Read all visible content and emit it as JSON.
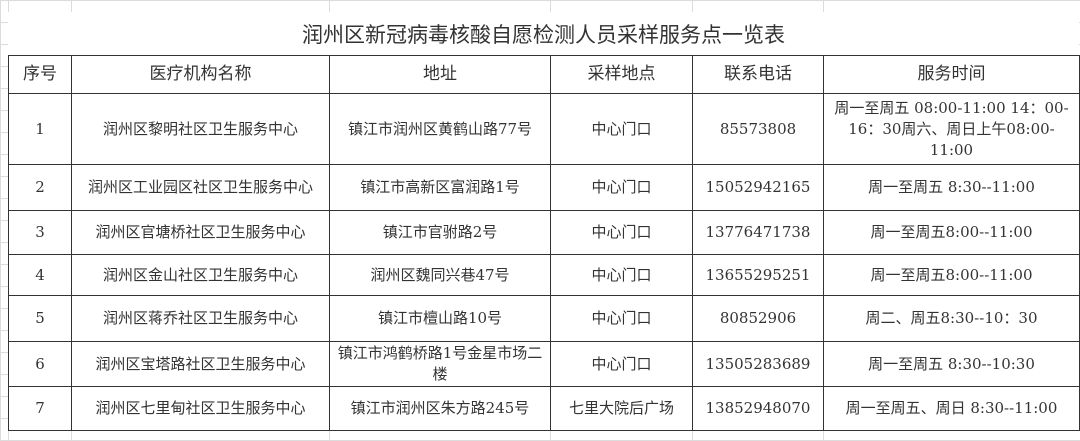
{
  "sheet": {
    "title": "润州区新冠病毒核酸自愿检测人员采样服务点一览表",
    "headers": [
      "序号",
      "医疗机构名称",
      "地址",
      "采样地点",
      "联系电话",
      "服务时间"
    ],
    "rows": [
      [
        "1",
        "润州区黎明社区卫生服务中心",
        "镇江市润州区黄鹤山路77号",
        "中心门口",
        "85573808",
        "周一至周五 08:00-11:00 14：00-16：30周六、周日上午08:00-11:00"
      ],
      [
        "2",
        "润州区工业园区社区卫生服务中心",
        "镇江市高新区富润路1号",
        "中心门口",
        "15052942165",
        "周一至周五 8:30--11:00"
      ],
      [
        "3",
        "润州区官塘桥社区卫生服务中心",
        "镇江市官驸路2号",
        "中心门口",
        "13776471738",
        "周一至周五8:00--11:00"
      ],
      [
        "4",
        "润州区金山社区卫生服务中心",
        "润州区魏同兴巷47号",
        "中心门口",
        "13655295251",
        "周一至周五8:00--11:00"
      ],
      [
        "5",
        "润州区蒋乔社区卫生服务中心",
        "镇江市檀山路10号",
        "中心门口",
        "80852906",
        "周二、周五8:30--10：30"
      ],
      [
        "6",
        "润州区宝塔路社区卫生服务中心",
        "镇江市鸿鹤桥路1号金星市场二楼",
        "中心门口",
        "13505283689",
        "周一至周五 8:30--10:30"
      ],
      [
        "7",
        "润州区七里甸社区卫生服务中心",
        "镇江市润州区朱方路245号",
        "七里大院后广场",
        "13852948070",
        "周一至周五、周日 8:30--11:00"
      ]
    ]
  }
}
